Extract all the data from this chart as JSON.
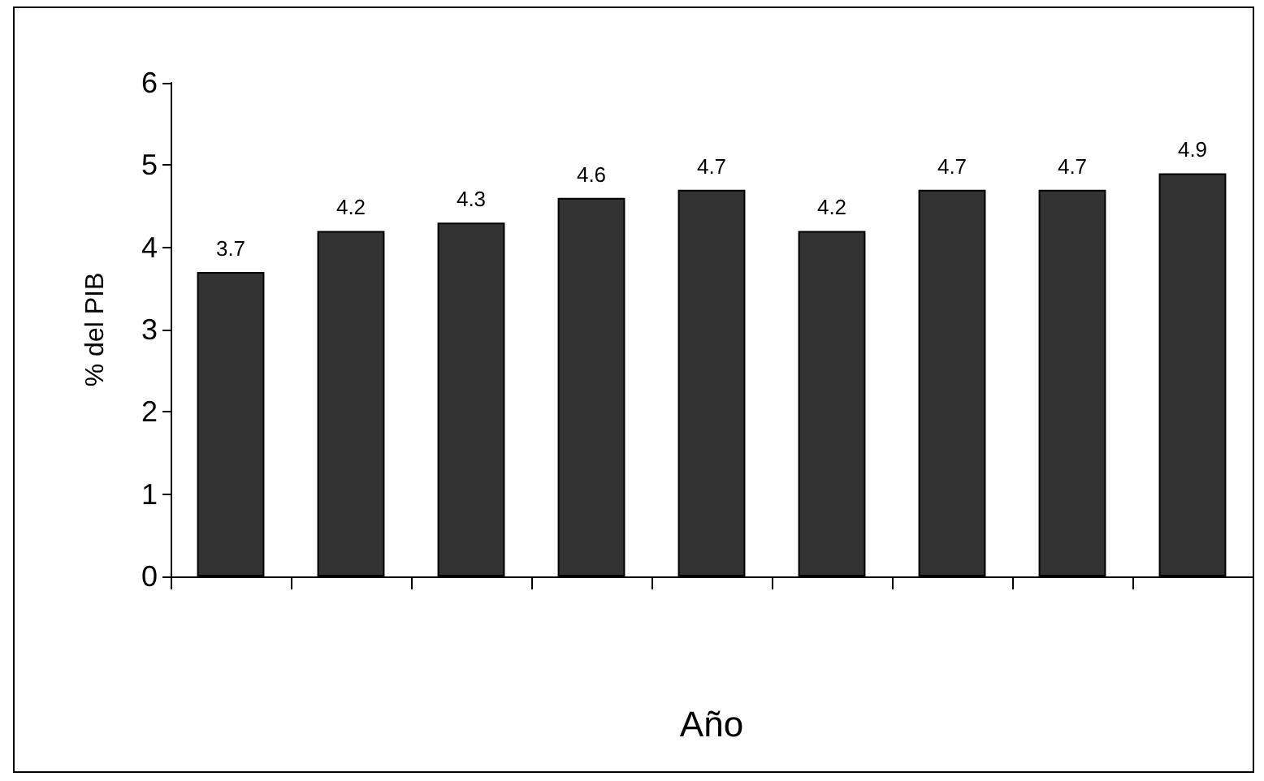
{
  "chart_data": {
    "type": "bar",
    "xlabel": "Año",
    "ylabel": "% del PIB",
    "categories": [
      null,
      null,
      null,
      null,
      null,
      null,
      null,
      null,
      null
    ],
    "values": [
      3.7,
      4.2,
      4.3,
      4.6,
      4.7,
      4.2,
      4.7,
      4.7,
      4.9
    ],
    "color": "#333333",
    "ylim": [
      0,
      6
    ],
    "yticks": [
      0,
      1,
      2,
      3,
      4,
      5,
      6
    ],
    "grid": false,
    "data_labels": true
  }
}
